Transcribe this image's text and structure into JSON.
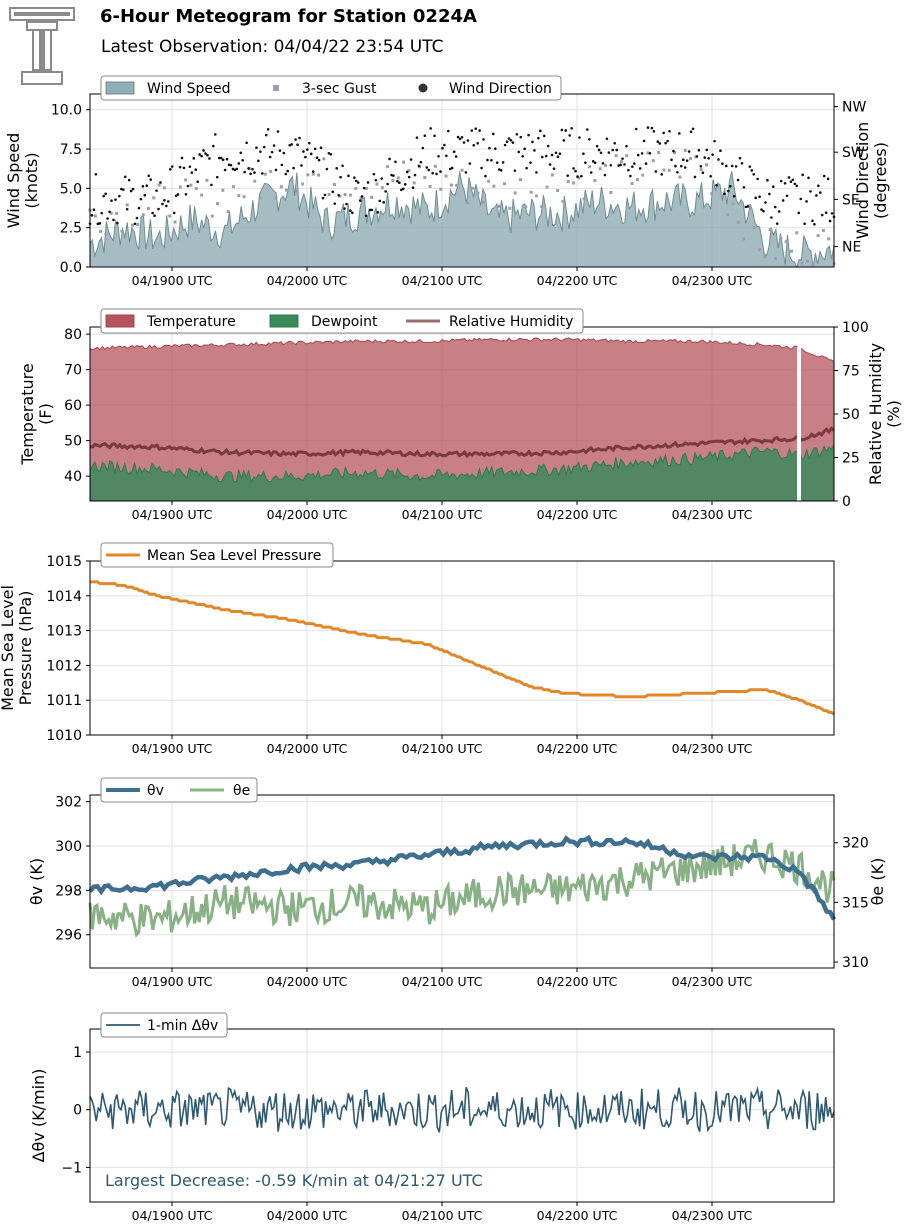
{
  "header": {
    "title": "6-Hour Meteogram for Station 0224A",
    "subtitle": "Latest Observation: 04/04/22 23:54 UTC",
    "logo": "texas-tech-double-t-logo"
  },
  "colors": {
    "wind": "#8fadb3",
    "gust": "#9e9ab6",
    "direction": "#111111",
    "temperature": "#b5545c",
    "dewpoint": "#3c8a5c",
    "rh": "#7b3a3d",
    "pressure": "#e2862a",
    "theta_v": "#3e6f8e",
    "theta_e": "#89b186",
    "dtheta": "#2e5970",
    "annotation": "#2e5970"
  },
  "chart_data": [
    {
      "type": "area",
      "x_ticks": [
        "04/1900 UTC",
        "04/2000 UTC",
        "04/2100 UTC",
        "04/2200 UTC",
        "04/2300 UTC"
      ],
      "ylabel": "Wind Speed\n(knots)",
      "ylabel_right": "Wind Direction\n(degrees)",
      "ylim": [
        0,
        11
      ],
      "yticks": [
        "0.0",
        "2.5",
        "5.0",
        "7.5",
        "10.0"
      ],
      "right_ticks": [
        "NE",
        "SE",
        "SW",
        "NW"
      ],
      "legend": [
        "Wind Speed",
        "3-sec Gust",
        "Wind Direction"
      ],
      "series": [
        {
          "name": "Wind Speed",
          "x": [
            0,
            0.25,
            0.5,
            0.75,
            1,
            1.25,
            1.5,
            1.75,
            2,
            2.25,
            2.5,
            2.75,
            3,
            3.25,
            3.5,
            3.75,
            4,
            4.25,
            4.5,
            4.75,
            5,
            5.25,
            5.5
          ],
          "values": [
            1.5,
            2.5,
            1.8,
            3.0,
            2.2,
            4.0,
            5.2,
            2.8,
            3.5,
            4.2,
            3.6,
            5.2,
            3.0,
            3.4,
            3.4,
            4.2,
            3.8,
            4.2,
            4.2,
            5.0,
            1.6,
            0.8,
            1.2
          ]
        },
        {
          "name": "3-sec Gust",
          "x": [
            0,
            0.5,
            1,
            1.5,
            2,
            2.5,
            3,
            3.5,
            4,
            4.5,
            5,
            5.5
          ],
          "values": [
            3.2,
            4.0,
            4.6,
            6.0,
            5.4,
            5.8,
            4.6,
            5.4,
            6.0,
            6.8,
            1.2,
            1.4
          ]
        },
        {
          "name": "Wind Direction",
          "x": [
            0,
            0.5,
            1,
            1.5,
            2,
            2.5,
            3,
            3.5,
            4,
            4.5,
            5,
            5.5
          ],
          "values": [
            "SE",
            "SE",
            "SW",
            "SW",
            "SE",
            "SW",
            "SW",
            "SW",
            "SW",
            "SW",
            "SE",
            "SE"
          ]
        }
      ]
    },
    {
      "type": "area",
      "x_ticks": [
        "04/1900 UTC",
        "04/2000 UTC",
        "04/2100 UTC",
        "04/2200 UTC",
        "04/2300 UTC"
      ],
      "ylabel": "Temperature\n(F)",
      "ylabel_right": "Relative Humidity\n(%)",
      "ylim": [
        33,
        82
      ],
      "yticks": [
        "40",
        "50",
        "60",
        "70",
        "80"
      ],
      "right_ylim": [
        0,
        100
      ],
      "right_ticks": [
        "0",
        "25",
        "50",
        "75",
        "100"
      ],
      "legend": [
        "Temperature",
        "Dewpoint",
        "Relative Humidity"
      ],
      "series": [
        {
          "name": "Temperature",
          "x": [
            0,
            0.5,
            1,
            1.5,
            2,
            2.5,
            3,
            3.5,
            4,
            4.5,
            5,
            5.25,
            5.5
          ],
          "values": [
            76,
            76.5,
            77,
            77.5,
            78,
            78,
            78.5,
            78.5,
            78,
            78,
            77,
            76,
            72
          ]
        },
        {
          "name": "Dewpoint",
          "x": [
            0,
            0.5,
            1,
            1.5,
            2,
            2.5,
            3,
            3.5,
            4,
            4.5,
            5,
            5.25,
            5.5
          ],
          "values": [
            43,
            42,
            40,
            40,
            41,
            40,
            41,
            42,
            44,
            45,
            47,
            46,
            48
          ]
        },
        {
          "name": "Relative Humidity",
          "x": [
            0,
            0.5,
            1,
            1.5,
            2,
            2.5,
            3,
            3.5,
            4,
            4.5,
            5,
            5.25,
            5.5
          ],
          "values": [
            32,
            31,
            28,
            27,
            28,
            27,
            27,
            28,
            31,
            33,
            35,
            36,
            41
          ]
        }
      ]
    },
    {
      "type": "line",
      "x_ticks": [
        "04/1900 UTC",
        "04/2000 UTC",
        "04/2100 UTC",
        "04/2200 UTC",
        "04/2300 UTC"
      ],
      "ylabel": "Mean Sea Level\nPressure (hPa)",
      "ylim": [
        1010,
        1015
      ],
      "yticks": [
        "1010",
        "1011",
        "1012",
        "1013",
        "1014",
        "1015"
      ],
      "legend": [
        "Mean Sea Level Pressure"
      ],
      "series": [
        {
          "name": "Mean Sea Level Pressure",
          "x": [
            0,
            0.25,
            0.5,
            1,
            1.5,
            2,
            2.5,
            3,
            3.25,
            3.5,
            4,
            4.5,
            5,
            5.25,
            5.5
          ],
          "values": [
            1014.4,
            1014.3,
            1014.0,
            1013.6,
            1013.3,
            1012.9,
            1012.6,
            1011.8,
            1011.4,
            1011.2,
            1011.1,
            1011.2,
            1011.3,
            1011.0,
            1010.6
          ]
        }
      ]
    },
    {
      "type": "line",
      "x_ticks": [
        "04/1900 UTC",
        "04/2000 UTC",
        "04/2100 UTC",
        "04/2200 UTC",
        "04/2300 UTC"
      ],
      "ylabel": "θv (K)",
      "ylabel_right": "θe (K)",
      "ylim": [
        294.5,
        302.3
      ],
      "yticks": [
        "296",
        "298",
        "300",
        "302"
      ],
      "right_ylim": [
        309.5,
        324
      ],
      "right_ticks": [
        "310",
        "315",
        "320"
      ],
      "legend": [
        "θv",
        "θe"
      ],
      "series": [
        {
          "name": "θv",
          "x": [
            0,
            0.5,
            1,
            1.5,
            2,
            2.5,
            3,
            3.5,
            4,
            4.5,
            5,
            5.25,
            5.5
          ],
          "values": [
            298.0,
            298.2,
            298.6,
            299.0,
            299.2,
            299.6,
            300.0,
            300.2,
            300.2,
            299.5,
            299.5,
            298.8,
            296.7
          ]
        },
        {
          "name": "θe",
          "x": [
            0,
            0.5,
            1,
            1.5,
            2,
            2.5,
            3,
            3.5,
            4,
            4.5,
            5,
            5.25,
            5.5
          ],
          "values": [
            314,
            313.5,
            315,
            314.5,
            315,
            314.5,
            316,
            316,
            317,
            318,
            319,
            318,
            316
          ]
        }
      ]
    },
    {
      "type": "line",
      "x_ticks": [
        "04/1900 UTC",
        "04/2000 UTC",
        "04/2100 UTC",
        "04/2200 UTC",
        "04/2300 UTC"
      ],
      "ylabel": "Δθv (K/min)",
      "ylim": [
        -1.6,
        1.4
      ],
      "yticks": [
        "−1",
        "0",
        "1"
      ],
      "legend": [
        "1-min Δθv"
      ],
      "annotation": "Largest Decrease: -0.59 K/min at 04/21:27 UTC",
      "series": [
        {
          "name": "1-min Δθv",
          "x": [
            0,
            0.5,
            1,
            1.5,
            2,
            2.5,
            3,
            3.5,
            4,
            4.5,
            5,
            5.5
          ],
          "values": [
            0.1,
            -0.2,
            0.2,
            -0.1,
            0.1,
            -0.2,
            0.2,
            -0.1,
            0.1,
            -0.2,
            0.1,
            -0.2
          ]
        }
      ]
    }
  ]
}
